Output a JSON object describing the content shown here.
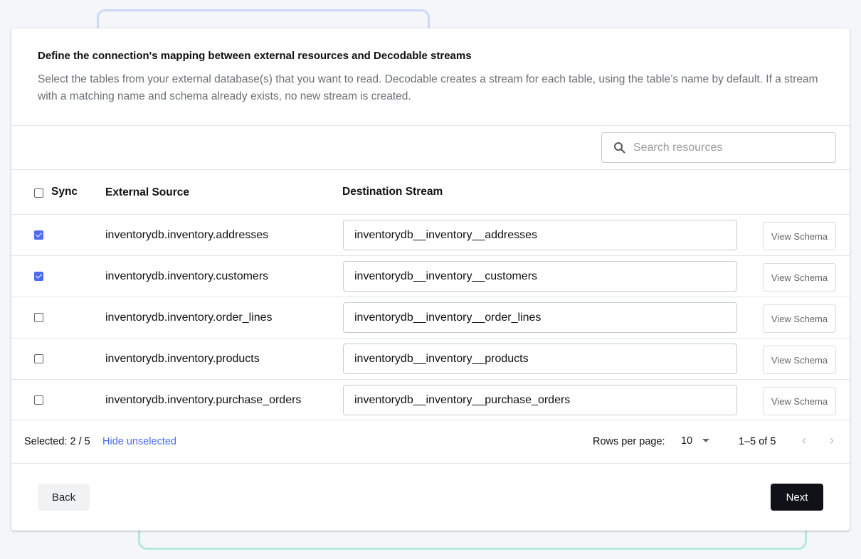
{
  "header": {
    "title": "Define the connection's mapping between external resources and Decodable streams",
    "description": "Select the tables from your external database(s) that you want to read. Decodable creates a stream for each table, using the table’s name by default. If a stream with a matching name and schema already exists, no new stream is created."
  },
  "search": {
    "placeholder": "Search resources"
  },
  "table": {
    "columns": {
      "sync": "Sync",
      "source": "External Source",
      "destination": "Destination Stream"
    },
    "rows": [
      {
        "checked": true,
        "source": "inventorydb.inventory.addresses",
        "destination": "inventorydb__inventory__addresses",
        "action": "View Schema"
      },
      {
        "checked": true,
        "source": "inventorydb.inventory.customers",
        "destination": "inventorydb__inventory__customers",
        "action": "View Schema"
      },
      {
        "checked": false,
        "source": "inventorydb.inventory.order_lines",
        "destination": "inventorydb__inventory__order_lines",
        "action": "View Schema"
      },
      {
        "checked": false,
        "source": "inventorydb.inventory.products",
        "destination": "inventorydb__inventory__products",
        "action": "View Schema"
      },
      {
        "checked": false,
        "source": "inventorydb.inventory.purchase_orders",
        "destination": "inventorydb__inventory__purchase_orders",
        "action": "View Schema"
      }
    ]
  },
  "footer": {
    "selected": "Selected: 2 / 5",
    "hide_unselected": "Hide unselected",
    "rows_per_page_label": "Rows per page:",
    "rows_per_page": "10",
    "range": "1–5 of 5"
  },
  "actions": {
    "back": "Back",
    "next": "Next"
  },
  "colors": {
    "accent": "#4a6cf7",
    "primary_button": "#111118",
    "link": "#4a6cf7"
  }
}
